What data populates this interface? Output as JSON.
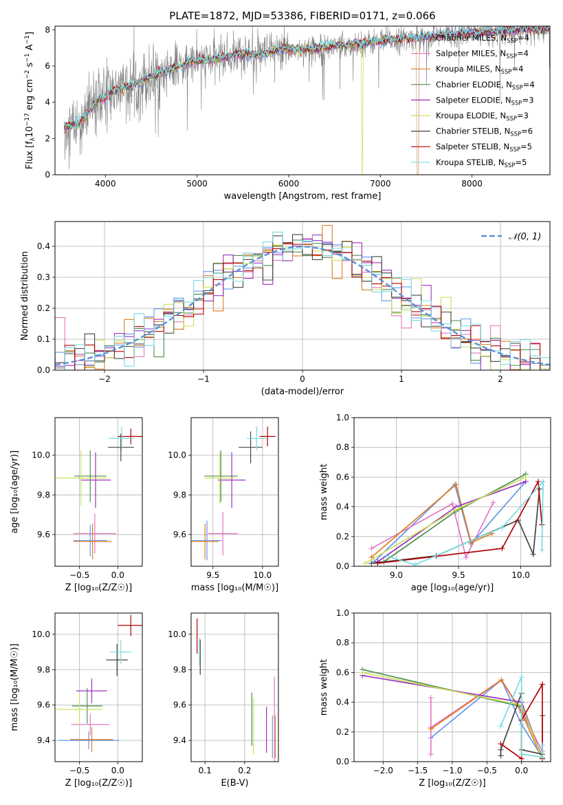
{
  "figure_title": "PLATE=1872, MJD=53386, FIBERID=0171, z=0.066",
  "colors": {
    "chab_miles": "#6495ed",
    "salp_miles": "#e377c2",
    "krou_miles": "#e07b1f",
    "chab_elodie": "#4e8a4e",
    "salp_elodie": "#9b30c0",
    "krou_elodie": "#c8e25a",
    "chab_stelib": "#444444",
    "salp_stelib": "#b00000",
    "krou_stelib": "#7ad9df",
    "data": "#808080"
  },
  "series_names": [
    "Chabrier MILES, N$_{SSP}$=4",
    "Salpeter MILES, N$_{SSP}$=4",
    "Kroupa MILES, N$_{SSP}$=4",
    "Chabrier ELODIE, N$_{SSP}$=4",
    "Salpeter ELODIE, N$_{SSP}$=3",
    "Kroupa ELODIE, N$_{SSP}$=3",
    "Chabrier STELIB, N$_{SSP}$=6",
    "Salpeter STELIB, N$_{SSP}$=5",
    "Kroupa STELIB, N$_{SSP}$=5"
  ],
  "legend_labels": [
    {
      "pre": "Chabrier MILES, N",
      "sub": "SSP",
      "post": "=4"
    },
    {
      "pre": "Salpeter MILES, N",
      "sub": "SSP",
      "post": "=4"
    },
    {
      "pre": "Kroupa MILES, N",
      "sub": "SSP",
      "post": "=4"
    },
    {
      "pre": "Chabrier ELODIE, N",
      "sub": "SSP",
      "post": "=4"
    },
    {
      "pre": "Salpeter ELODIE, N",
      "sub": "SSP",
      "post": "=3"
    },
    {
      "pre": "Kroupa ELODIE, N",
      "sub": "SSP",
      "post": "=3"
    },
    {
      "pre": "Chabrier STELIB, N",
      "sub": "SSP",
      "post": "=6"
    },
    {
      "pre": "Salpeter STELIB, N",
      "sub": "SSP",
      "post": "=5"
    },
    {
      "pre": "Kroupa STELIB, N",
      "sub": "SSP",
      "post": "=5"
    }
  ],
  "chart_data": [
    {
      "id": "spectrum",
      "type": "line",
      "xlabel": "wavelength [Angstrom, rest frame]",
      "ylabel": {
        "pre": "Flux [f",
        "sub": "λ",
        "mid": "10",
        "sup": "−17",
        "post": " erg cm",
        "sup2": "−2",
        "post2": " s",
        "sup3": "−1",
        "post3": " A",
        "sup4": "−1",
        "post4": "]"
      },
      "xlim": [
        3450,
        8850
      ],
      "ylim": [
        0,
        8.2
      ],
      "xticks": [
        4000,
        5000,
        6000,
        7000,
        8000
      ],
      "yticks": [
        0,
        2,
        4,
        6,
        8
      ],
      "continuum": [
        [
          3550,
          2.6
        ],
        [
          3700,
          2.8
        ],
        [
          3800,
          3.3
        ],
        [
          3900,
          4.0
        ],
        [
          4000,
          4.3
        ],
        [
          4100,
          4.7
        ],
        [
          4300,
          4.9
        ],
        [
          4500,
          5.4
        ],
        [
          4700,
          5.8
        ],
        [
          4900,
          6.2
        ],
        [
          5100,
          6.3
        ],
        [
          5300,
          6.5
        ],
        [
          5500,
          6.7
        ],
        [
          5700,
          6.6
        ],
        [
          5900,
          6.9
        ],
        [
          6100,
          6.9
        ],
        [
          6300,
          6.95
        ],
        [
          6500,
          7.1
        ],
        [
          6700,
          7.2
        ],
        [
          6900,
          7.3
        ],
        [
          7100,
          7.4
        ],
        [
          7300,
          7.5
        ],
        [
          7500,
          7.6
        ],
        [
          7700,
          7.7
        ],
        [
          7900,
          7.8
        ],
        [
          8200,
          7.9
        ],
        [
          8500,
          8.0
        ]
      ]
    },
    {
      "id": "residuals",
      "type": "step-histogram",
      "xlabel": "(data-model)/error",
      "ylabel": "Normed distribution",
      "xlim": [
        -2.5,
        2.5
      ],
      "ylim": [
        0,
        0.48
      ],
      "xticks": [
        -2,
        -1,
        0,
        1,
        2
      ],
      "yticks": [
        0.0,
        0.1,
        0.2,
        0.3,
        0.4
      ],
      "bin_width": 0.1,
      "reference_label": "𝒩(0, 1)",
      "reference_color": "#5b8fd6"
    },
    {
      "id": "age_vs_Z",
      "type": "errorbar",
      "xlabel": "Z [log₁₀(Z/Z☉)]",
      "ylabel": "age  [log₁₀(age/yr)]",
      "xlim": [
        -0.82,
        0.32
      ],
      "ylim": [
        9.44,
        10.19
      ],
      "xticks": [
        -0.5,
        0.0
      ],
      "yticks": [
        9.6,
        9.8,
        10.0
      ],
      "points": [
        {
          "c": "chab_miles",
          "x": -0.36,
          "xe": 0.22,
          "y": 9.57,
          "ye": 0.08
        },
        {
          "c": "salp_miles",
          "x": -0.3,
          "xe": 0.28,
          "y": 9.605,
          "ye": 0.1
        },
        {
          "c": "krou_miles",
          "x": -0.33,
          "xe": 0.25,
          "y": 9.565,
          "ye": 0.09
        },
        {
          "c": "chab_elodie",
          "x": -0.36,
          "xe": 0.21,
          "y": 9.895,
          "ye": 0.13
        },
        {
          "c": "salp_elodie",
          "x": -0.29,
          "xe": 0.2,
          "y": 9.875,
          "ye": 0.14
        },
        {
          "c": "krou_elodie",
          "x": -0.48,
          "xe": 0.34,
          "y": 9.885,
          "ye": 0.14
        },
        {
          "c": "chab_stelib",
          "x": 0.04,
          "xe": 0.17,
          "y": 10.04,
          "ye": 0.07
        },
        {
          "c": "salp_stelib",
          "x": 0.17,
          "xe": 0.17,
          "y": 10.095,
          "ye": 0.04
        },
        {
          "c": "krou_stelib",
          "x": 0.05,
          "xe": 0.17,
          "y": 10.085,
          "ye": 0.06
        }
      ]
    },
    {
      "id": "age_vs_mass",
      "type": "errorbar",
      "xlabel": "mass [log₁₀(M/M☉)]",
      "ylabel": "",
      "xlim": [
        9.28,
        10.16
      ],
      "ylim": [
        9.44,
        10.19
      ],
      "xticks": [
        9.5,
        10.0
      ],
      "yticks": [
        9.6,
        9.8,
        10.0
      ],
      "points": [
        {
          "c": "chab_miles",
          "x": 9.44,
          "xe": 0.15,
          "y": 9.57,
          "ye": 0.1
        },
        {
          "c": "salp_miles",
          "x": 9.6,
          "xe": 0.15,
          "y": 9.605,
          "ye": 0.11
        },
        {
          "c": "krou_miles",
          "x": 9.42,
          "xe": 0.14,
          "y": 9.565,
          "ye": 0.09
        },
        {
          "c": "chab_elodie",
          "x": 9.58,
          "xe": 0.17,
          "y": 9.895,
          "ye": 0.13
        },
        {
          "c": "salp_elodie",
          "x": 9.69,
          "xe": 0.14,
          "y": 9.875,
          "ye": 0.14
        },
        {
          "c": "krou_elodie",
          "x": 9.57,
          "xe": 0.15,
          "y": 9.885,
          "ye": 0.13
        },
        {
          "c": "chab_stelib",
          "x": 9.88,
          "xe": 0.12,
          "y": 10.04,
          "ye": 0.08
        },
        {
          "c": "salp_stelib",
          "x": 10.05,
          "xe": 0.08,
          "y": 10.095,
          "ye": 0.05
        },
        {
          "c": "krou_stelib",
          "x": 9.94,
          "xe": 0.1,
          "y": 10.085,
          "ye": 0.06
        }
      ]
    },
    {
      "id": "weight_vs_age",
      "type": "line",
      "xlabel": "age  [log₁₀(age/yr)]",
      "ylabel": "mass weight",
      "xlim": [
        8.66,
        10.24
      ],
      "ylim": [
        0,
        1.0
      ],
      "xticks": [
        9.0,
        9.5,
        10.0
      ],
      "yticks": [
        0.0,
        0.2,
        0.4,
        0.6,
        0.8,
        1.0
      ],
      "series": [
        {
          "c": "chab_miles",
          "pts": [
            [
              8.82,
              0.03
            ],
            [
              9.47,
              0.55
            ],
            [
              9.6,
              0.15
            ],
            [
              10.04,
              0.57
            ]
          ]
        },
        {
          "c": "salp_miles",
          "pts": [
            [
              8.8,
              0.12
            ],
            [
              9.45,
              0.42
            ],
            [
              9.56,
              0.06
            ],
            [
              9.78,
              0.43
            ]
          ]
        },
        {
          "c": "krou_miles",
          "pts": [
            [
              8.8,
              0.06
            ],
            [
              9.48,
              0.55
            ],
            [
              9.6,
              0.16
            ],
            [
              9.77,
              0.22
            ]
          ]
        },
        {
          "c": "chab_elodie",
          "pts": [
            [
              8.9,
              0.03
            ],
            [
              9.48,
              0.37
            ],
            [
              10.04,
              0.62
            ]
          ]
        },
        {
          "c": "salp_elodie",
          "pts": [
            [
              8.85,
              0.03
            ],
            [
              9.48,
              0.4
            ],
            [
              10.04,
              0.57
            ]
          ]
        },
        {
          "c": "krou_elodie",
          "pts": [
            [
              8.75,
              0.02
            ],
            [
              9.48,
              0.38
            ],
            [
              10.04,
              0.6
            ]
          ]
        },
        {
          "c": "chab_stelib",
          "pts": [
            [
              8.8,
              0.02
            ],
            [
              9.32,
              0.07
            ],
            [
              9.98,
              0.31
            ],
            [
              10.1,
              0.08
            ],
            [
              10.15,
              0.52
            ]
          ]
        },
        {
          "c": "salp_stelib",
          "pts": [
            [
              8.85,
              0.02
            ],
            [
              9.85,
              0.12
            ],
            [
              10.14,
              0.57
            ],
            [
              10.17,
              0.28
            ]
          ]
        },
        {
          "c": "krou_stelib",
          "pts": [
            [
              8.92,
              0.07
            ],
            [
              9.15,
              0.01
            ],
            [
              9.85,
              0.26
            ],
            [
              10.18,
              0.57
            ],
            [
              10.17,
              0.11
            ]
          ]
        }
      ]
    },
    {
      "id": "mass_vs_Z",
      "type": "errorbar",
      "xlabel": "Z [log₁₀(Z/Z☉)]",
      "ylabel": "mass [log₁₀(M/M☉)]",
      "xlim": [
        -0.82,
        0.32
      ],
      "ylim": [
        9.28,
        10.12
      ],
      "xticks": [
        -0.5,
        0.0
      ],
      "yticks": [
        9.4,
        9.6,
        9.8,
        10.0
      ],
      "points": [
        {
          "c": "chab_miles",
          "x": -0.38,
          "xe": 0.4,
          "y": 9.4,
          "ye": 0.05
        },
        {
          "c": "salp_miles",
          "x": -0.36,
          "xe": 0.25,
          "y": 9.49,
          "ye": 0.06
        },
        {
          "c": "krou_miles",
          "x": -0.34,
          "xe": 0.28,
          "y": 9.405,
          "ye": 0.07
        },
        {
          "c": "chab_elodie",
          "x": -0.4,
          "xe": 0.2,
          "y": 9.595,
          "ye": 0.1
        },
        {
          "c": "salp_elodie",
          "x": -0.34,
          "xe": 0.2,
          "y": 9.68,
          "ye": 0.07
        },
        {
          "c": "krou_elodie",
          "x": -0.5,
          "xe": 0.3,
          "y": 9.575,
          "ye": 0.09
        },
        {
          "c": "chab_stelib",
          "x": -0.01,
          "xe": 0.14,
          "y": 9.855,
          "ye": 0.09
        },
        {
          "c": "salp_stelib",
          "x": 0.17,
          "xe": 0.17,
          "y": 10.05,
          "ye": 0.06
        },
        {
          "c": "krou_stelib",
          "x": 0.04,
          "xe": 0.14,
          "y": 9.9,
          "ye": 0.07
        }
      ]
    },
    {
      "id": "mass_vs_EBV",
      "type": "errorbar",
      "xlabel": "E(B-V)",
      "ylabel": "",
      "xlim": [
        0.065,
        0.285
      ],
      "ylim": [
        9.28,
        10.12
      ],
      "xticks": [
        0.1,
        0.2
      ],
      "yticks": [
        9.4,
        9.6,
        9.8,
        10.0
      ],
      "points": [
        {
          "c": "chab_miles",
          "x": 0.27,
          "xe": 0.0,
          "y": 9.42,
          "ye": 0.12
        },
        {
          "c": "salp_miles",
          "x": 0.275,
          "xe": 0.0,
          "y": 9.52,
          "ye": 0.24
        },
        {
          "c": "krou_miles",
          "x": 0.277,
          "xe": 0.0,
          "y": 9.42,
          "ye": 0.12
        },
        {
          "c": "chab_elodie",
          "x": 0.218,
          "xe": 0.0,
          "y": 9.52,
          "ye": 0.15
        },
        {
          "c": "salp_elodie",
          "x": 0.255,
          "xe": 0.0,
          "y": 9.46,
          "ye": 0.13
        },
        {
          "c": "krou_elodie",
          "x": 0.222,
          "xe": 0.0,
          "y": 9.48,
          "ye": 0.16
        },
        {
          "c": "chab_stelib",
          "x": 0.088,
          "xe": 0.0,
          "y": 9.87,
          "ye": 0.1
        },
        {
          "c": "salp_stelib",
          "x": 0.08,
          "xe": 0.0,
          "y": 9.99,
          "ye": 0.1
        },
        {
          "c": "krou_stelib",
          "x": 0.086,
          "xe": 0.0,
          "y": 9.9,
          "ye": 0.08
        }
      ]
    },
    {
      "id": "weight_vs_Z",
      "type": "line",
      "xlabel": "Z [log₁₀(Z/Z☉)]",
      "ylabel": "mass weight",
      "xlim": [
        -2.42,
        0.42
      ],
      "ylim": [
        0,
        1.0
      ],
      "xticks": [
        -2.0,
        -1.5,
        -1.0,
        -0.5,
        0.0
      ],
      "yticks": [
        0.0,
        0.2,
        0.4,
        0.6,
        0.8,
        1.0
      ],
      "series": [
        {
          "c": "chab_miles",
          "pts": [
            [
              -1.31,
              0.16
            ],
            [
              -0.29,
              0.55
            ],
            [
              0.0,
              0.25
            ],
            [
              0.3,
              0.03
            ]
          ]
        },
        {
          "c": "salp_miles",
          "pts": [
            [
              -1.31,
              0.05
            ],
            [
              -1.31,
              0.43
            ],
            [
              -1.31,
              0.23
            ],
            [
              -0.29,
              0.55
            ],
            [
              0.0,
              0.34
            ],
            [
              0.3,
              0.07
            ]
          ]
        },
        {
          "c": "krou_miles",
          "pts": [
            [
              -1.31,
              0.22
            ],
            [
              -0.29,
              0.55
            ],
            [
              0.0,
              0.33
            ],
            [
              0.3,
              0.02
            ]
          ]
        },
        {
          "c": "chab_elodie",
          "pts": [
            [
              -2.3,
              0.62
            ],
            [
              0.0,
              0.37
            ],
            [
              0.3,
              0.03
            ]
          ]
        },
        {
          "c": "salp_elodie",
          "pts": [
            [
              -2.3,
              0.58
            ],
            [
              0.0,
              0.4
            ],
            [
              0.3,
              0.02
            ]
          ]
        },
        {
          "c": "krou_elodie",
          "pts": [
            [
              -2.3,
              0.6
            ],
            [
              0.0,
              0.38
            ],
            [
              0.3,
              0.02
            ]
          ]
        },
        {
          "c": "chab_stelib",
          "pts": [
            [
              -0.3,
              0.04
            ],
            [
              -0.3,
              0.08
            ],
            [
              0.0,
              0.46
            ],
            [
              0.0,
              0.08
            ],
            [
              0.3,
              0.05
            ],
            [
              0.3,
              0.31
            ]
          ]
        },
        {
          "c": "salp_stelib",
          "pts": [
            [
              -0.3,
              0.12
            ],
            [
              0.0,
              0.02
            ],
            [
              0.0,
              0.28
            ],
            [
              0.3,
              0.52
            ],
            [
              0.3,
              0.02
            ]
          ]
        },
        {
          "c": "krou_stelib",
          "pts": [
            [
              -0.3,
              0.24
            ],
            [
              0.0,
              0.57
            ],
            [
              0.0,
              0.05
            ],
            [
              0.3,
              0.03
            ],
            [
              0.3,
              0.11
            ]
          ]
        }
      ]
    }
  ]
}
